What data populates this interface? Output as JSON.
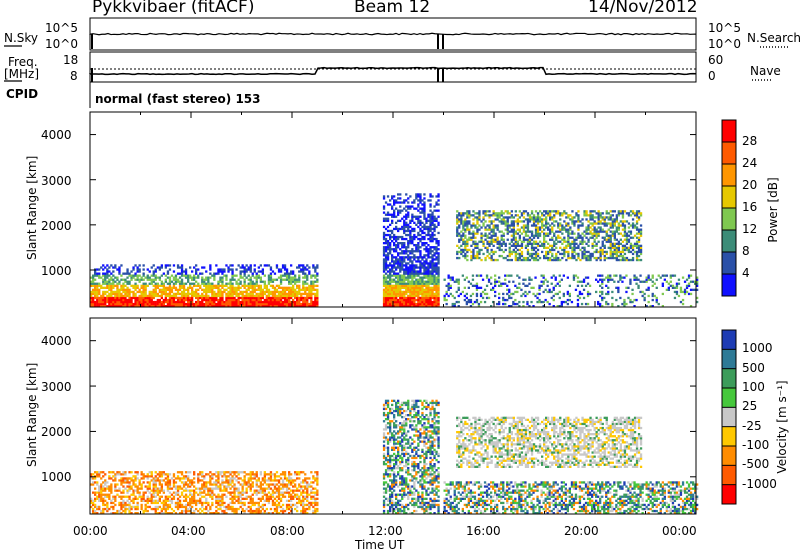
{
  "header": {
    "title": "Pykkvibaer (fitACF)",
    "beam": "Beam 12",
    "date": "14/Nov/2012"
  },
  "noise_panel": {
    "left_label": "N.Sky",
    "left_ticks": [
      "10^5",
      "10^0"
    ],
    "right_label": "N.Search",
    "right_ticks": [
      "10^5",
      "10^0"
    ]
  },
  "freq_panel": {
    "left_label_line1": "Freq.",
    "left_label_line2": "[MHz]",
    "left_ticks": [
      "18",
      "8"
    ],
    "right_label": "Nave",
    "right_ticks": [
      "60",
      "0"
    ]
  },
  "cpid_panel": {
    "label": "CPID",
    "mode_text": "normal (fast stereo) 153"
  },
  "chart_data": [
    {
      "type": "heatmap",
      "name": "power",
      "ylabel": "Slant Range [km]",
      "yticks": [
        "4000",
        "3000",
        "2000",
        "1000"
      ],
      "ylim": [
        180,
        4500
      ],
      "xlim": [
        0,
        24
      ],
      "colorbar": {
        "label": "Power [dB]",
        "ticks": [
          "28",
          "24",
          "20",
          "16",
          "12",
          "8",
          "4"
        ],
        "colors": [
          "#ff0000",
          "#ff5a00",
          "#ff9600",
          "#e6c800",
          "#7fc850",
          "#3c8c78",
          "#2a50a8",
          "#1010ff"
        ]
      },
      "regions": [
        {
          "x": [
            0.0,
            9.0
          ],
          "y": [
            180,
            1100
          ],
          "level": "high-near"
        },
        {
          "x": [
            11.6,
            13.8
          ],
          "y": [
            180,
            2700
          ],
          "level": "high-near"
        },
        {
          "x": [
            14.5,
            21.8
          ],
          "y": [
            1200,
            2300
          ],
          "level": "medium"
        },
        {
          "x": [
            14.0,
            24.0
          ],
          "y": [
            180,
            900
          ],
          "level": "low"
        }
      ]
    },
    {
      "type": "heatmap",
      "name": "velocity",
      "ylabel": "Slant Range [km]",
      "yticks": [
        "4000",
        "3000",
        "2000",
        "1000"
      ],
      "ylim": [
        180,
        4500
      ],
      "xlim": [
        0,
        24
      ],
      "xlabel": "Time UT",
      "xticks": [
        "00:00",
        "04:00",
        "08:00",
        "12:00",
        "16:00",
        "20:00",
        "00:00"
      ],
      "colorbar": {
        "label": "Velocity [m s⁻¹]",
        "ticks": [
          "1000",
          "500",
          "100",
          "25",
          "-25",
          "-100",
          "-500",
          "-1000"
        ],
        "colors": [
          "#1e3cb4",
          "#2e7a96",
          "#3c9c5a",
          "#46c83c",
          "#c8c8c8",
          "#ffc800",
          "#ff8c00",
          "#ff5a00",
          "#ff0000"
        ]
      },
      "regions": [
        {
          "x": [
            0.0,
            9.0
          ],
          "y": [
            180,
            1100
          ],
          "level": "negative"
        },
        {
          "x": [
            11.6,
            13.8
          ],
          "y": [
            180,
            2700
          ],
          "level": "mixed"
        },
        {
          "x": [
            14.5,
            21.8
          ],
          "y": [
            1200,
            2300
          ],
          "level": "near-zero"
        },
        {
          "x": [
            14.0,
            24.0
          ],
          "y": [
            180,
            900
          ],
          "level": "mixed"
        }
      ]
    }
  ]
}
